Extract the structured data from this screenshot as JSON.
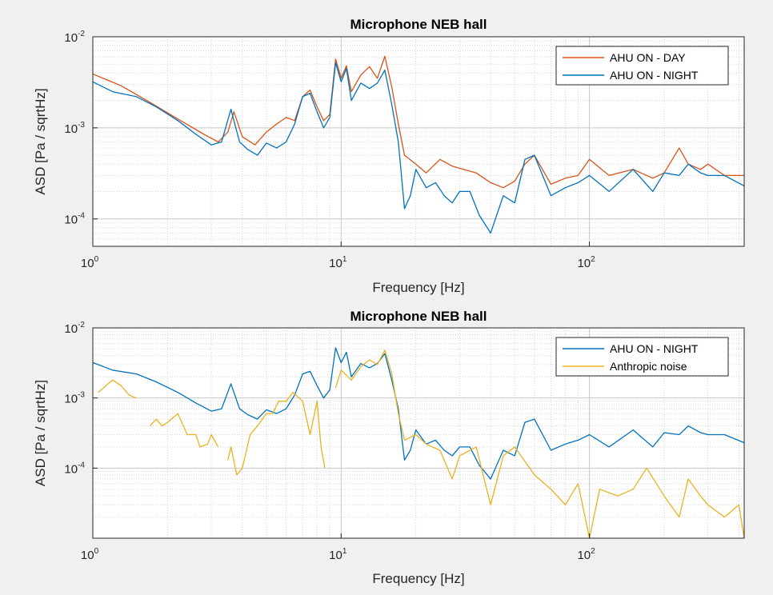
{
  "chart_data": [
    {
      "type": "line",
      "title": "Microphone NEB hall",
      "xlabel": "Frequency [Hz]",
      "ylabel": "ASD [Pa / sqrtHz]",
      "xscale": "log",
      "yscale": "log",
      "xlim": [
        1,
        420
      ],
      "ylim": [
        5e-05,
        0.01
      ],
      "grid": "major and minor, dotted",
      "legend_position": "top-right",
      "x_ticks": [
        {
          "base": "10",
          "exp": "0"
        },
        {
          "base": "10",
          "exp": "1"
        },
        {
          "base": "10",
          "exp": "2"
        }
      ],
      "y_ticks": [
        {
          "base": "10",
          "exp": "-4"
        },
        {
          "base": "10",
          "exp": "-3"
        },
        {
          "base": "10",
          "exp": "-2"
        }
      ],
      "series": [
        {
          "name": "AHU ON - DAY",
          "color": "#d95319",
          "x": [
            1,
            1.3,
            1.7,
            2.2,
            2.8,
            3.2,
            3.5,
            3.7,
            4.0,
            4.5,
            5.0,
            5.5,
            6.0,
            6.5,
            7.0,
            7.5,
            8.0,
            8.5,
            9.0,
            9.5,
            10,
            10.5,
            11,
            12,
            13,
            14,
            15,
            16,
            17,
            18,
            20,
            22,
            25,
            28,
            30,
            35,
            40,
            45,
            50,
            55,
            60,
            70,
            80,
            90,
            100,
            120,
            150,
            180,
            200,
            230,
            250,
            280,
            300,
            350,
            420
          ],
          "y": [
            0.0039,
            0.0029,
            0.0019,
            0.00125,
            0.00085,
            0.0007,
            0.0009,
            0.0015,
            0.0008,
            0.00065,
            0.0009,
            0.0011,
            0.0013,
            0.0012,
            0.0022,
            0.0026,
            0.0017,
            0.0012,
            0.0014,
            0.0057,
            0.0035,
            0.0048,
            0.0025,
            0.0038,
            0.0047,
            0.0035,
            0.0061,
            0.0028,
            0.0011,
            0.0005,
            0.0004,
            0.00032,
            0.00045,
            0.00038,
            0.00036,
            0.00032,
            0.00025,
            0.00022,
            0.00026,
            0.0004,
            0.0005,
            0.00024,
            0.00028,
            0.0003,
            0.00045,
            0.0003,
            0.00035,
            0.00028,
            0.00032,
            0.0006,
            0.0004,
            0.00035,
            0.0004,
            0.0003,
            0.0003
          ]
        },
        {
          "name": "AHU ON - NIGHT",
          "color": "#0072bd",
          "x": [
            1,
            1.2,
            1.5,
            1.8,
            2.2,
            2.6,
            3.0,
            3.3,
            3.6,
            3.7,
            3.9,
            4.2,
            4.6,
            5.0,
            5.5,
            6.0,
            6.5,
            7.0,
            7.5,
            8.0,
            8.5,
            9.0,
            9.5,
            10,
            10.5,
            11,
            11.5,
            12,
            13,
            14,
            15,
            16,
            17,
            18,
            19,
            20,
            22,
            24,
            26,
            28,
            30,
            33,
            36,
            40,
            45,
            50,
            55,
            60,
            70,
            80,
            90,
            100,
            120,
            150,
            180,
            200,
            230,
            250,
            280,
            300,
            350,
            420
          ],
          "y": [
            0.0032,
            0.0025,
            0.0022,
            0.0017,
            0.0012,
            0.00085,
            0.00065,
            0.0007,
            0.0016,
            0.0012,
            0.0007,
            0.00058,
            0.0005,
            0.00068,
            0.0006,
            0.0007,
            0.0011,
            0.0022,
            0.0024,
            0.0015,
            0.001,
            0.0013,
            0.0052,
            0.0032,
            0.0045,
            0.002,
            0.0025,
            0.0031,
            0.0027,
            0.0031,
            0.0043,
            0.0018,
            0.0007,
            0.00013,
            0.00018,
            0.00035,
            0.00022,
            0.00025,
            0.00018,
            0.00015,
            0.0002,
            0.0002,
            0.00011,
            7e-05,
            0.00018,
            0.00015,
            0.00045,
            0.0005,
            0.00018,
            0.00022,
            0.00025,
            0.0003,
            0.0002,
            0.00035,
            0.0002,
            0.00032,
            0.0003,
            0.0004,
            0.00032,
            0.0003,
            0.0003,
            0.00023
          ]
        }
      ]
    },
    {
      "type": "line",
      "title": "Microphone NEB hall",
      "xlabel": "Frequency [Hz]",
      "ylabel": "ASD [Pa / sqrtHz]",
      "xscale": "log",
      "yscale": "log",
      "xlim": [
        1,
        420
      ],
      "ylim": [
        1e-05,
        0.01
      ],
      "grid": "major and minor, dotted",
      "legend_position": "top-right",
      "x_ticks": [
        {
          "base": "10",
          "exp": "0"
        },
        {
          "base": "10",
          "exp": "1"
        },
        {
          "base": "10",
          "exp": "2"
        }
      ],
      "y_ticks": [
        {
          "base": "10",
          "exp": "-4"
        },
        {
          "base": "10",
          "exp": "-3"
        },
        {
          "base": "10",
          "exp": "-2"
        }
      ],
      "series": [
        {
          "name": "AHU ON - NIGHT",
          "color": "#0072bd",
          "x": [
            1,
            1.2,
            1.5,
            1.8,
            2.2,
            2.6,
            3.0,
            3.3,
            3.6,
            3.7,
            3.9,
            4.2,
            4.6,
            5.0,
            5.5,
            6.0,
            6.5,
            7.0,
            7.5,
            8.0,
            8.5,
            9.0,
            9.5,
            10,
            10.5,
            11,
            11.5,
            12,
            13,
            14,
            15,
            16,
            17,
            18,
            19,
            20,
            22,
            24,
            26,
            28,
            30,
            33,
            36,
            40,
            45,
            50,
            55,
            60,
            70,
            80,
            90,
            100,
            120,
            150,
            180,
            200,
            230,
            250,
            280,
            300,
            350,
            420
          ],
          "y": [
            0.0032,
            0.0025,
            0.0022,
            0.0017,
            0.0012,
            0.00085,
            0.00065,
            0.0007,
            0.0016,
            0.0012,
            0.0007,
            0.00058,
            0.0005,
            0.00068,
            0.0006,
            0.0007,
            0.0011,
            0.0022,
            0.0024,
            0.0015,
            0.001,
            0.0013,
            0.0052,
            0.0032,
            0.0045,
            0.002,
            0.0025,
            0.0031,
            0.0027,
            0.0031,
            0.0043,
            0.0018,
            0.0007,
            0.00013,
            0.00018,
            0.00035,
            0.00022,
            0.00025,
            0.00018,
            0.00015,
            0.0002,
            0.0002,
            0.00011,
            7e-05,
            0.00018,
            0.00015,
            0.00045,
            0.0005,
            0.00018,
            0.00022,
            0.00025,
            0.0003,
            0.0002,
            0.00035,
            0.0002,
            0.00032,
            0.0003,
            0.0004,
            0.00032,
            0.0003,
            0.0003,
            0.00023
          ]
        },
        {
          "name": "Anthropic noise",
          "color": "#edb120",
          "x": [
            1.05,
            1.2,
            1.3,
            1.4,
            1.5,
            null,
            1.7,
            1.8,
            1.9,
            2.0,
            2.2,
            2.4,
            2.6,
            2.7,
            2.9,
            3.0,
            3.2,
            null,
            3.5,
            3.6,
            3.8,
            4.0,
            4.3,
            4.6,
            5.0,
            5.3,
            5.6,
            6.0,
            6.4,
            7.0,
            7.5,
            8.0,
            8.3,
            8.6,
            null,
            9.5,
            10,
            11,
            12,
            13,
            14,
            15,
            16,
            17,
            18,
            20,
            22,
            25,
            28,
            30,
            35,
            40,
            45,
            50,
            60,
            70,
            80,
            90,
            100,
            110,
            130,
            150,
            170,
            200,
            230,
            250,
            280,
            300,
            350,
            400,
            420
          ],
          "y": [
            0.0012,
            0.0018,
            0.0015,
            0.0011,
            0.001,
            null,
            0.0004,
            0.0005,
            0.0004,
            0.00045,
            0.0006,
            0.0003,
            0.0003,
            0.0002,
            0.00022,
            0.0003,
            0.0002,
            null,
            0.00013,
            0.0002,
            8e-05,
            0.0001,
            0.0003,
            0.0004,
            0.0006,
            0.0006,
            0.0009,
            0.0009,
            0.0012,
            0.0009,
            0.0003,
            0.0009,
            0.0002,
            0.0001,
            null,
            0.0014,
            0.0025,
            0.0018,
            0.0028,
            0.0035,
            0.003,
            0.0048,
            0.0022,
            0.0006,
            0.00025,
            0.0003,
            0.00022,
            0.00018,
            7e-05,
            0.00015,
            0.0002,
            3e-05,
            0.00015,
            0.0002,
            8e-05,
            5e-05,
            3e-05,
            6e-05,
            1e-05,
            5e-05,
            4e-05,
            5e-05,
            0.0001,
            4e-05,
            2e-05,
            7e-05,
            4e-05,
            3e-05,
            2e-05,
            3e-05,
            1e-05
          ]
        }
      ]
    }
  ]
}
